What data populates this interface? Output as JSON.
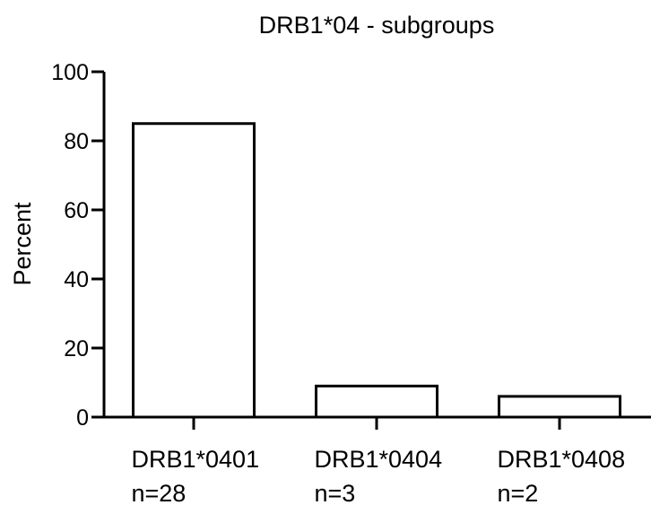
{
  "chart_data": {
    "type": "bar",
    "title": "DRB1*04 - subgroups",
    "xlabel": "",
    "ylabel": "Percent",
    "ylim": [
      0,
      100
    ],
    "yticks": [
      0,
      20,
      40,
      60,
      80,
      100
    ],
    "grid": false,
    "categories": [
      "DRB1*0401",
      "DRB1*0404",
      "DRB1*0408"
    ],
    "category_notes": [
      "n=28",
      "n=3",
      "n=2"
    ],
    "values": [
      85,
      9,
      6
    ],
    "bar_fill": "#ffffff",
    "bar_stroke": "#000000"
  }
}
